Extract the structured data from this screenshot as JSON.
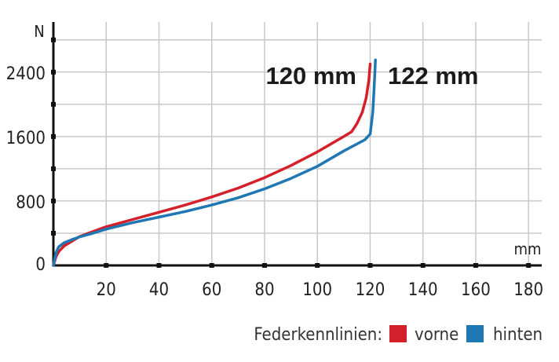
{
  "chart_data": {
    "type": "line",
    "xlabel": "",
    "ylabel": "",
    "x_unit": "mm",
    "y_unit": "N",
    "xlim": [
      0,
      185
    ],
    "ylim": [
      0,
      3100
    ],
    "x_ticks": [
      20,
      40,
      60,
      80,
      100,
      120,
      140,
      160,
      180
    ],
    "y_ticks": [
      0,
      800,
      1600,
      2400
    ],
    "grid": true,
    "legend_position": "bottom-right",
    "legend_title": "Federkennlinien:",
    "series": [
      {
        "name": "vorne",
        "color": "#d4202a",
        "end_label": "120 mm",
        "points": [
          [
            0,
            0
          ],
          [
            1,
            110
          ],
          [
            2,
            170
          ],
          [
            4,
            240
          ],
          [
            7,
            300
          ],
          [
            10,
            360
          ],
          [
            15,
            420
          ],
          [
            20,
            480
          ],
          [
            30,
            570
          ],
          [
            40,
            660
          ],
          [
            50,
            750
          ],
          [
            60,
            850
          ],
          [
            70,
            960
          ],
          [
            80,
            1090
          ],
          [
            90,
            1240
          ],
          [
            100,
            1410
          ],
          [
            110,
            1600
          ],
          [
            113,
            1660
          ],
          [
            115,
            1760
          ],
          [
            117,
            1900
          ],
          [
            118.5,
            2080
          ],
          [
            119.5,
            2300
          ],
          [
            120,
            2500
          ]
        ]
      },
      {
        "name": "hinten",
        "color": "#1f77b4",
        "end_label": "122 mm",
        "points": [
          [
            0,
            0
          ],
          [
            1,
            160
          ],
          [
            2,
            230
          ],
          [
            4,
            280
          ],
          [
            7,
            320
          ],
          [
            10,
            355
          ],
          [
            15,
            400
          ],
          [
            20,
            450
          ],
          [
            30,
            530
          ],
          [
            40,
            600
          ],
          [
            50,
            670
          ],
          [
            60,
            750
          ],
          [
            70,
            840
          ],
          [
            80,
            950
          ],
          [
            90,
            1080
          ],
          [
            100,
            1230
          ],
          [
            110,
            1420
          ],
          [
            118,
            1560
          ],
          [
            120,
            1630
          ],
          [
            121,
            1900
          ],
          [
            121.5,
            2200
          ],
          [
            122,
            2550
          ]
        ]
      }
    ]
  }
}
